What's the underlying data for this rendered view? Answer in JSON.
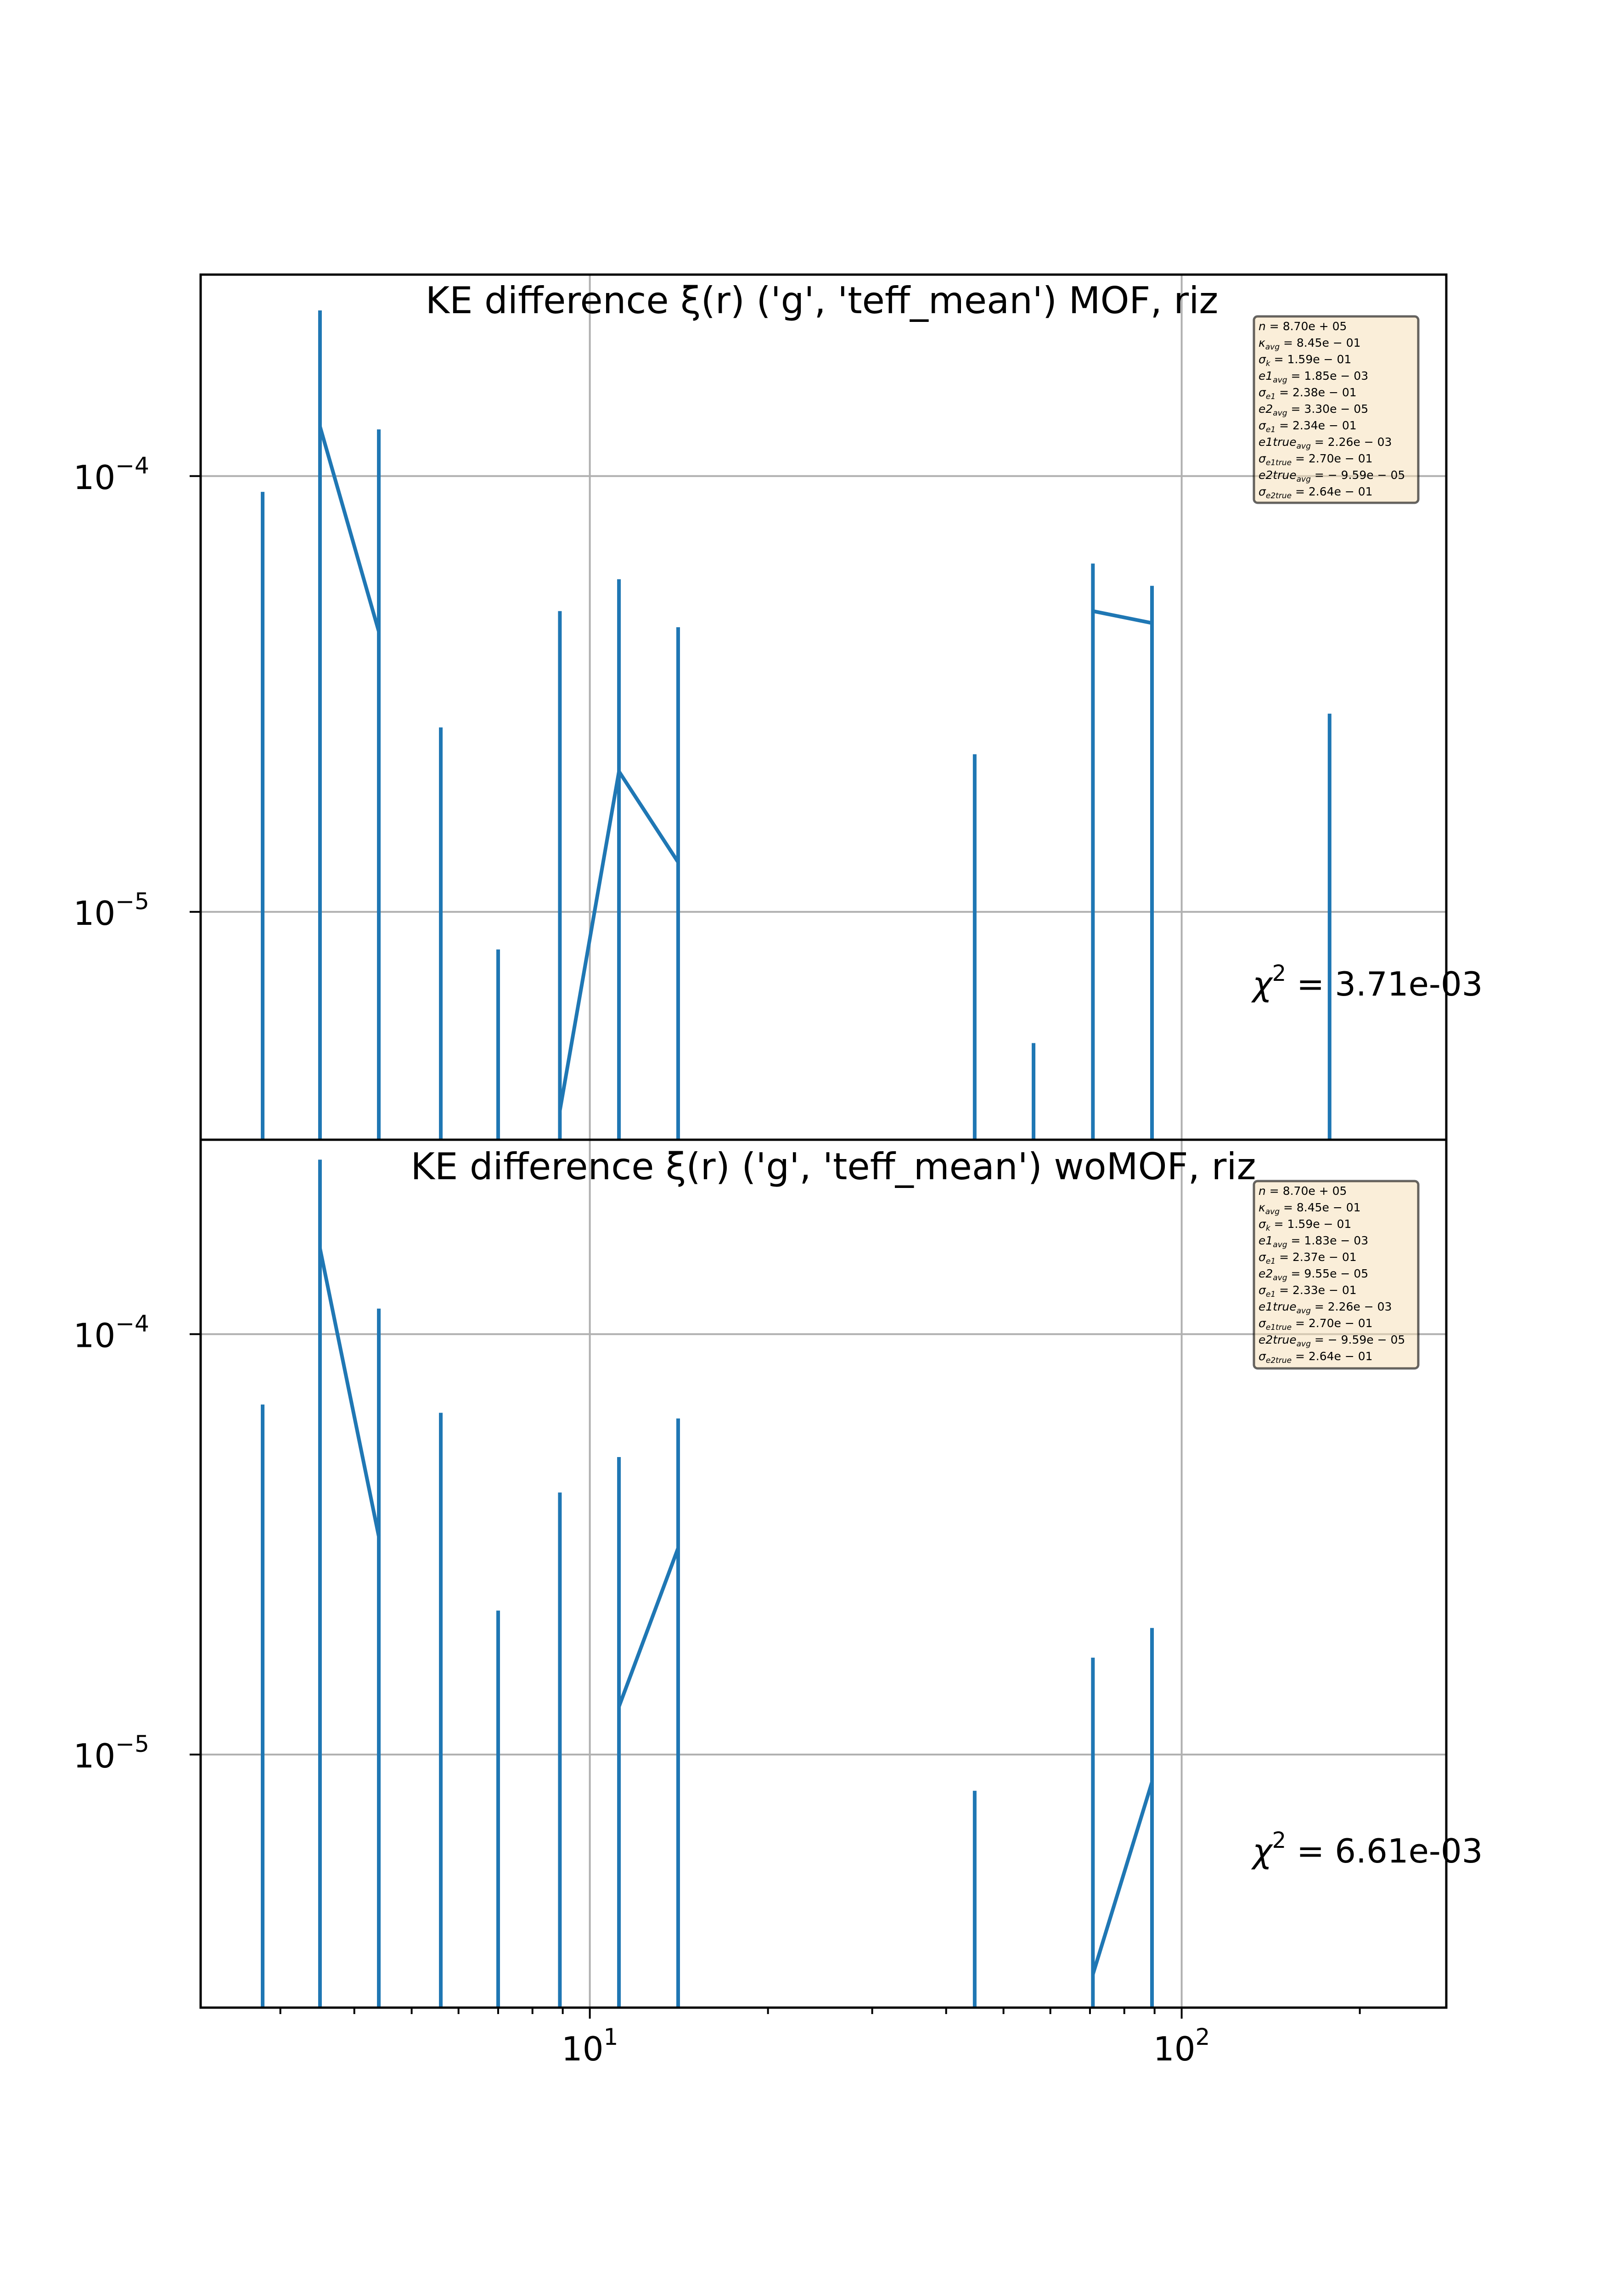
{
  "chart_data": [
    {
      "type": "errorbar_line",
      "title": "KE difference ξ(r) ('g', 'teff_mean') MOF,  riz",
      "xscale": "log",
      "yscale": "log",
      "xlim": [
        2.2,
        280
      ],
      "ylim": [
        3e-06,
        0.00029
      ],
      "grid": true,
      "xticks": [
        {
          "value": 10,
          "base": "10",
          "exp": "1"
        },
        {
          "value": 100,
          "base": "10",
          "exp": "2"
        }
      ],
      "yticks": [
        {
          "value": 1e-05,
          "base": "10",
          "exp": "−5"
        },
        {
          "value": 0.0001,
          "base": "10",
          "exp": "−4"
        }
      ],
      "points": [
        {
          "x": 2.8,
          "y": null,
          "yerr_low": 3e-06,
          "yerr_high": 9.2e-05
        },
        {
          "x": 3.5,
          "y": 0.00013,
          "yerr_low": 3e-06,
          "yerr_high": 0.00024
        },
        {
          "x": 4.4,
          "y": 4.4e-05,
          "yerr_low": 3e-06,
          "yerr_high": 0.000128
        },
        {
          "x": 5.6,
          "y": null,
          "yerr_low": 3e-06,
          "yerr_high": 2.65e-05
        },
        {
          "x": 7.0,
          "y": null,
          "yerr_low": 3e-06,
          "yerr_high": 8.2e-06
        },
        {
          "x": 8.9,
          "y": 3.5e-06,
          "yerr_low": 3e-06,
          "yerr_high": 4.9e-05
        },
        {
          "x": 11.2,
          "y": 2.1e-05,
          "yerr_low": 3e-06,
          "yerr_high": 5.8e-05
        },
        {
          "x": 14.1,
          "y": 1.3e-05,
          "yerr_low": 3e-06,
          "yerr_high": 4.5e-05
        },
        {
          "x": 44.7,
          "y": null,
          "yerr_low": 3e-06,
          "yerr_high": 2.3e-05
        },
        {
          "x": 56.2,
          "y": null,
          "yerr_low": 3e-06,
          "yerr_high": 5e-06
        },
        {
          "x": 70.8,
          "y": 4.9e-05,
          "yerr_low": 3e-06,
          "yerr_high": 6.3e-05
        },
        {
          "x": 89.1,
          "y": 4.6e-05,
          "yerr_low": 3e-06,
          "yerr_high": 5.6e-05
        },
        {
          "x": 177.8,
          "y": null,
          "yerr_low": 3e-06,
          "yerr_high": 2.85e-05
        }
      ],
      "chi2_label": "= 3.71e-03",
      "stats": [
        {
          "sym": "n",
          "sub": "",
          "val": "= 8.70e + 05"
        },
        {
          "sym": "κ",
          "sub": "avg",
          "val": "= 8.45e − 01"
        },
        {
          "sym": "σ",
          "sub": "k",
          "val": "= 1.59e − 01"
        },
        {
          "sym": "e1",
          "sub": "avg",
          "val": "= 1.85e − 03"
        },
        {
          "sym": "σ",
          "sub": "e1",
          "val": "= 2.38e − 01"
        },
        {
          "sym": "e2",
          "sub": "avg",
          "val": "= 3.30e − 05"
        },
        {
          "sym": "σ",
          "sub": "e1",
          "val": "= 2.34e − 01"
        },
        {
          "sym": "e1true",
          "sub": "avg",
          "val": "= 2.26e − 03"
        },
        {
          "sym": "σ",
          "sub": "e1true",
          "val": "= 2.70e − 01"
        },
        {
          "sym": "e2true",
          "sub": "avg",
          "val": "= − 9.59e − 05"
        },
        {
          "sym": "σ",
          "sub": "e2true",
          "val": "= 2.64e − 01"
        }
      ]
    },
    {
      "type": "errorbar_line",
      "title": "KE difference ξ(r) ('g', 'teff_mean') woMOF,  riz",
      "xscale": "log",
      "yscale": "log",
      "xlim": [
        2.2,
        280
      ],
      "ylim": [
        2.5e-06,
        0.00029
      ],
      "grid": true,
      "xticks": [
        {
          "value": 10,
          "base": "10",
          "exp": "1"
        },
        {
          "value": 100,
          "base": "10",
          "exp": "2"
        }
      ],
      "yticks": [
        {
          "value": 1e-05,
          "base": "10",
          "exp": "−5"
        },
        {
          "value": 0.0001,
          "base": "10",
          "exp": "−4"
        }
      ],
      "points": [
        {
          "x": 2.8,
          "y": null,
          "yerr_low": 2.5e-06,
          "yerr_high": 6.8e-05
        },
        {
          "x": 3.5,
          "y": 0.00016,
          "yerr_low": 2.5e-06,
          "yerr_high": 0.00026
        },
        {
          "x": 4.4,
          "y": 3.3e-05,
          "yerr_low": 2.5e-06,
          "yerr_high": 0.000115
        },
        {
          "x": 5.6,
          "y": null,
          "yerr_low": 2.5e-06,
          "yerr_high": 6.5e-05
        },
        {
          "x": 7.0,
          "y": null,
          "yerr_low": 2.5e-06,
          "yerr_high": 2.2e-05
        },
        {
          "x": 8.9,
          "y": null,
          "yerr_low": 2.5e-06,
          "yerr_high": 4.2e-05
        },
        {
          "x": 11.2,
          "y": 1.3e-05,
          "yerr_low": 2.5e-06,
          "yerr_high": 5.1e-05
        },
        {
          "x": 14.1,
          "y": 3.1e-05,
          "yerr_low": 2.5e-06,
          "yerr_high": 6.3e-05
        },
        {
          "x": 44.7,
          "y": null,
          "yerr_low": 2.5e-06,
          "yerr_high": 8.2e-06
        },
        {
          "x": 70.8,
          "y": 3e-06,
          "yerr_low": 2.5e-06,
          "yerr_high": 1.7e-05
        },
        {
          "x": 89.1,
          "y": 8.6e-06,
          "yerr_low": 2.5e-06,
          "yerr_high": 2e-05
        }
      ],
      "chi2_label": "= 6.61e-03",
      "stats": [
        {
          "sym": "n",
          "sub": "",
          "val": "= 8.70e + 05"
        },
        {
          "sym": "κ",
          "sub": "avg",
          "val": "= 8.45e − 01"
        },
        {
          "sym": "σ",
          "sub": "k",
          "val": "= 1.59e − 01"
        },
        {
          "sym": "e1",
          "sub": "avg",
          "val": "= 1.83e − 03"
        },
        {
          "sym": "σ",
          "sub": "e1",
          "val": "= 2.37e − 01"
        },
        {
          "sym": "e2",
          "sub": "avg",
          "val": "= 9.55e − 05"
        },
        {
          "sym": "σ",
          "sub": "e1",
          "val": "= 2.33e − 01"
        },
        {
          "sym": "e1true",
          "sub": "avg",
          "val": "= 2.26e − 03"
        },
        {
          "sym": "σ",
          "sub": "e1true",
          "val": "= 2.70e − 01"
        },
        {
          "sym": "e2true",
          "sub": "avg",
          "val": "= − 9.59e − 05"
        },
        {
          "sym": "σ",
          "sub": "e2true",
          "val": "= 2.64e − 01"
        }
      ]
    }
  ],
  "colors": {
    "series": "#1f77b4",
    "grid": "#b0b0b0",
    "statsbox": "#f5deb3"
  }
}
